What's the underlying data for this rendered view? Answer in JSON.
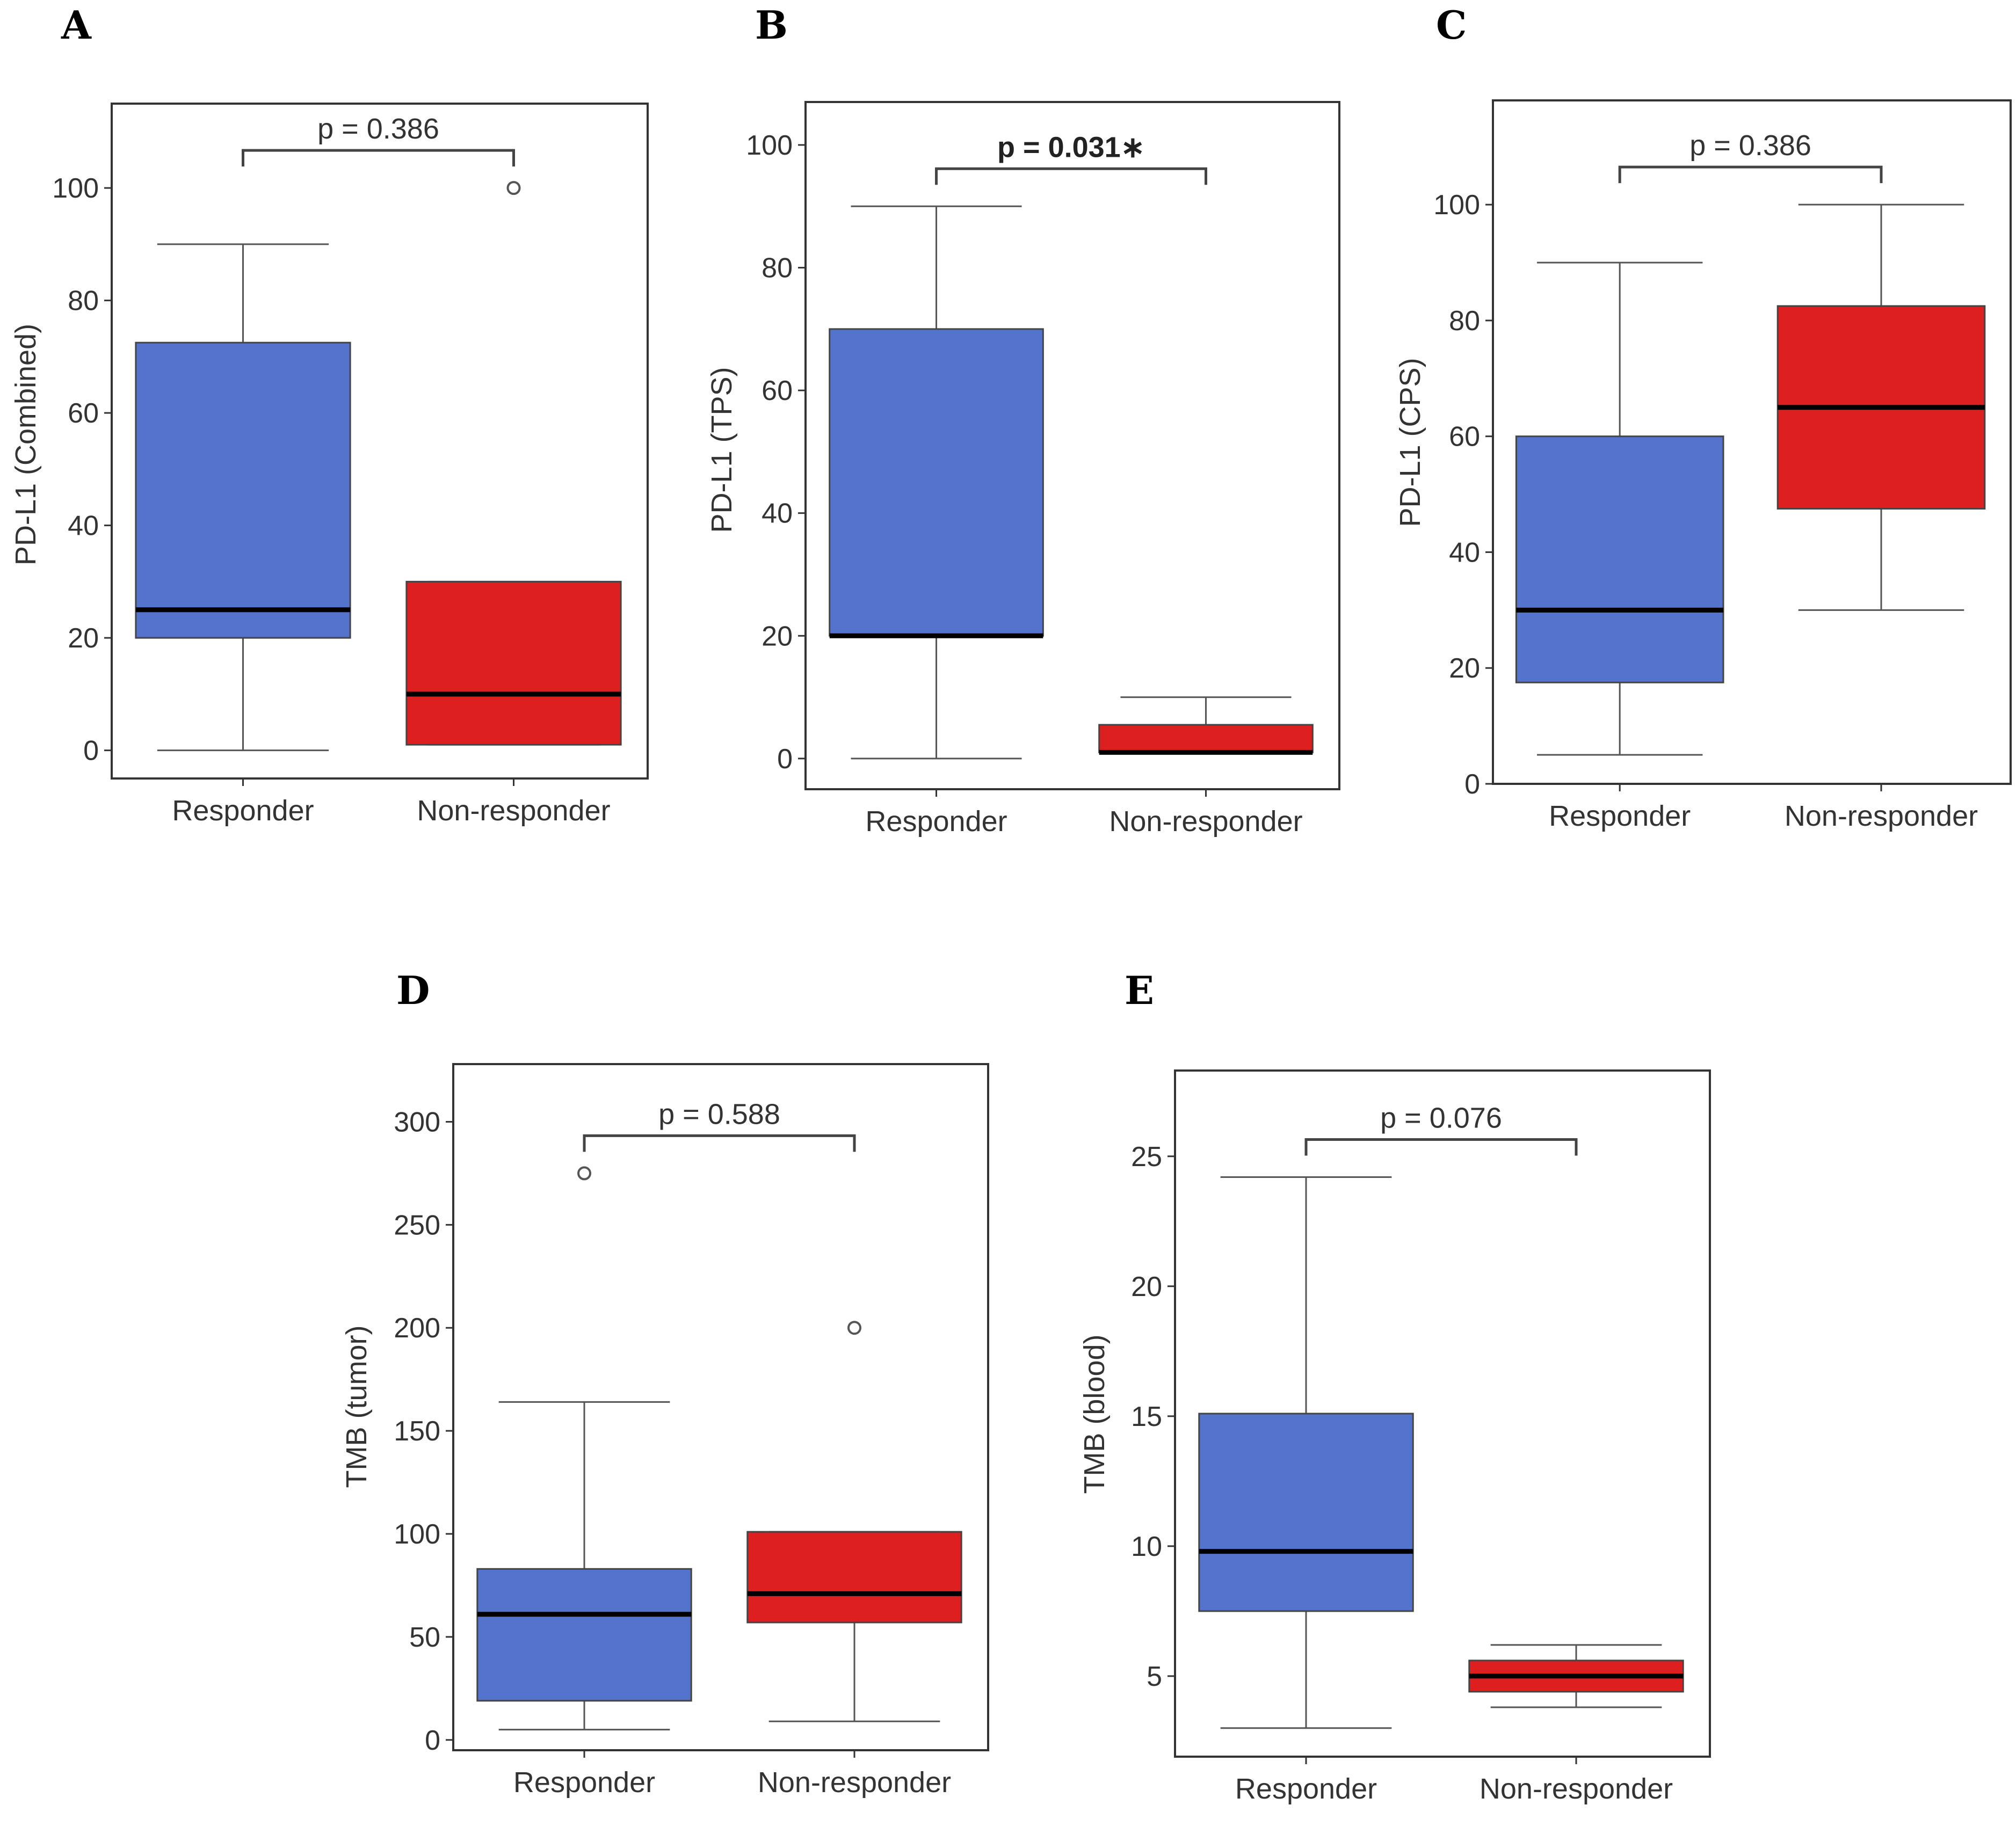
{
  "colors": {
    "responder": "#5473cc",
    "non_responder": "#de1f1f",
    "median": "#000000",
    "frame": "#333333",
    "whisker": "#555555"
  },
  "chart_data": [
    {
      "type": "box",
      "panel": "A",
      "ylabel": "PD-L1 (Combined)",
      "categories": [
        "Responder",
        "Non-responder"
      ],
      "yticks": [
        "0",
        "20",
        "40",
        "60",
        "80",
        "100"
      ],
      "ylim": [
        -5,
        115
      ],
      "p_text": "p = 0.386",
      "p_bold": false,
      "boxes": [
        {
          "group": "Responder",
          "whisker_low": 0,
          "q1": 20,
          "median": 25,
          "q3": 72.5,
          "whisker_high": 90,
          "outliers": []
        },
        {
          "group": "Non-responder",
          "whisker_low": 1,
          "q1": 1,
          "median": 10,
          "q3": 30,
          "whisker_high": 30,
          "outliers": [
            100
          ]
        }
      ]
    },
    {
      "type": "box",
      "panel": "B",
      "ylabel": "PD-L1 (TPS)",
      "categories": [
        "Responder",
        "Non-responder"
      ],
      "yticks": [
        "0",
        "20",
        "40",
        "60",
        "80",
        "100"
      ],
      "ylim": [
        -5,
        107
      ],
      "p_text": "p = 0.031∗",
      "p_bold": true,
      "boxes": [
        {
          "group": "Responder",
          "whisker_low": 0,
          "q1": 20,
          "median": 20,
          "q3": 70,
          "whisker_high": 90,
          "outliers": []
        },
        {
          "group": "Non-responder",
          "whisker_low": 1,
          "q1": 1,
          "median": 1,
          "q3": 5.5,
          "whisker_high": 10,
          "outliers": []
        }
      ]
    },
    {
      "type": "box",
      "panel": "C",
      "ylabel": "PD-L1 (CPS)",
      "categories": [
        "Responder",
        "Non-responder"
      ],
      "yticks": [
        "0",
        "20",
        "40",
        "60",
        "80",
        "100"
      ],
      "ylim": [
        0,
        118
      ],
      "p_text": "p = 0.386",
      "p_bold": false,
      "boxes": [
        {
          "group": "Responder",
          "whisker_low": 5,
          "q1": 17.5,
          "median": 30,
          "q3": 60,
          "whisker_high": 90,
          "outliers": []
        },
        {
          "group": "Non-responder",
          "whisker_low": 30,
          "q1": 47.5,
          "median": 65,
          "q3": 82.5,
          "whisker_high": 100,
          "outliers": []
        }
      ]
    },
    {
      "type": "box",
      "panel": "D",
      "ylabel": "TMB (tumor)",
      "categories": [
        "Responder",
        "Non-responder"
      ],
      "yticks": [
        "0",
        "50",
        "100",
        "150",
        "200",
        "250",
        "300"
      ],
      "ylim": [
        -5,
        328
      ],
      "p_text": "p = 0.588",
      "p_bold": false,
      "boxes": [
        {
          "group": "Responder",
          "whisker_low": 5,
          "q1": 19,
          "median": 61,
          "q3": 83,
          "whisker_high": 164,
          "outliers": [
            275
          ]
        },
        {
          "group": "Non-responder",
          "whisker_low": 9,
          "q1": 57,
          "median": 71,
          "q3": 101,
          "whisker_high": 101,
          "outliers": [
            200
          ]
        }
      ]
    },
    {
      "type": "box",
      "panel": "E",
      "ylabel": "TMB (blood)",
      "categories": [
        "Responder",
        "Non-responder"
      ],
      "yticks": [
        "5",
        "10",
        "15",
        "20",
        "25"
      ],
      "ylim": [
        1.9,
        28.3
      ],
      "p_text": "p = 0.076",
      "p_bold": false,
      "boxes": [
        {
          "group": "Responder",
          "whisker_low": 3,
          "q1": 7.5,
          "median": 9.8,
          "q3": 15.1,
          "whisker_high": 24.2,
          "outliers": []
        },
        {
          "group": "Non-responder",
          "whisker_low": 3.8,
          "q1": 4.4,
          "median": 5,
          "q3": 5.6,
          "whisker_high": 6.2,
          "outliers": []
        }
      ]
    }
  ]
}
